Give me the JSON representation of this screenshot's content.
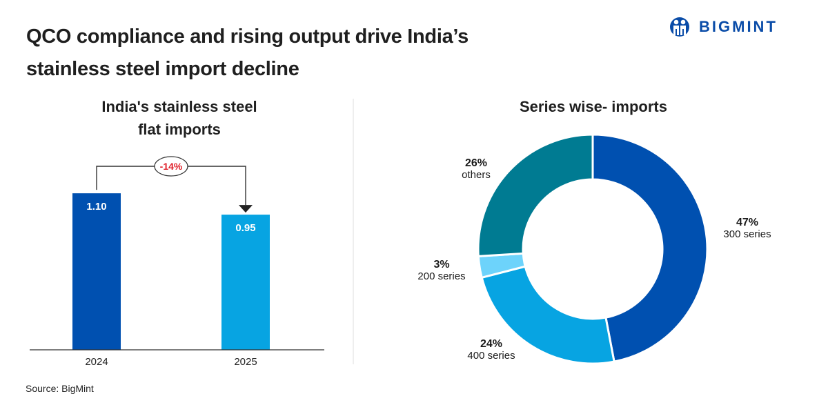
{
  "header": {
    "title": "QCO compliance and rising output drive India’s stainless steel import decline",
    "logo_text": "BIGMINT",
    "logo_icon": "bigmint-people-icon"
  },
  "source": "Source: BigMint",
  "colors": {
    "dark_blue": "#0050b0",
    "light_blue": "#07a4e2",
    "sky_blue": "#6dd3fb",
    "teal": "#007b92",
    "change_red": "#e0202a",
    "brand": "#0a4ca8"
  },
  "chart_data": [
    {
      "type": "bar",
      "title": "India's stainless steel flat imports",
      "title_lines": [
        "India's stainless steel",
        "flat imports"
      ],
      "categories": [
        "2024",
        "2025"
      ],
      "values": [
        1.1,
        0.95
      ],
      "value_labels": [
        "1.10",
        "0.95"
      ],
      "colors": [
        "#0050b0",
        "#07a4e2"
      ],
      "annotation": {
        "label": "-14%",
        "from": "2024",
        "to": "2025"
      },
      "xlabel": "",
      "ylabel": "",
      "ylim": [
        0,
        1.6
      ],
      "grid": false
    },
    {
      "type": "pie",
      "style": "donut",
      "title": "Series wise- imports",
      "slices": [
        {
          "label": "300 series",
          "value": 47,
          "pct_label": "47%",
          "color": "#0050b0"
        },
        {
          "label": "400 series",
          "value": 24,
          "pct_label": "24%",
          "color": "#07a4e2"
        },
        {
          "label": "200 series",
          "value": 3,
          "pct_label": "3%",
          "color": "#6dd3fb"
        },
        {
          "label": "others",
          "value": 26,
          "pct_label": "26%",
          "color": "#007b92"
        }
      ]
    }
  ]
}
